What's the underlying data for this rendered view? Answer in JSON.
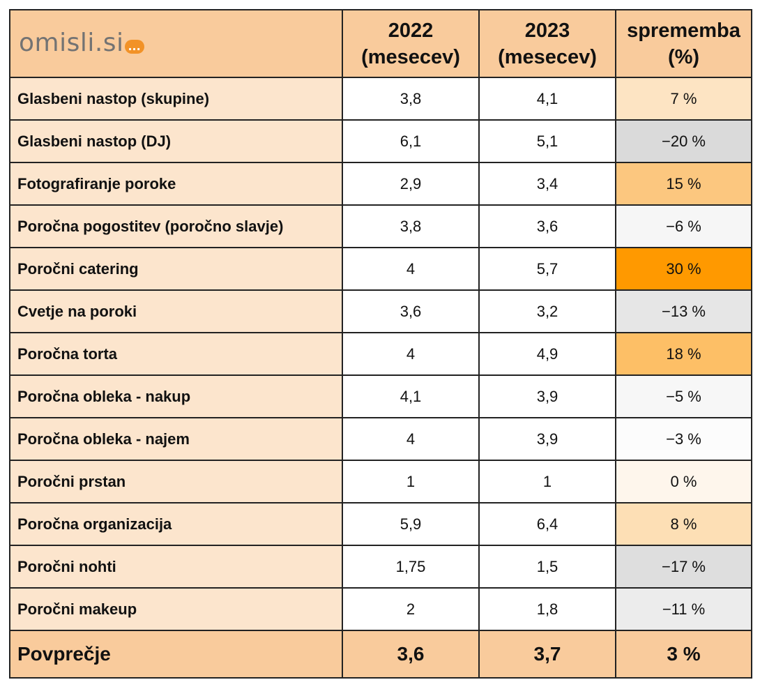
{
  "logo": {
    "text": "omisli.si",
    "bubble": "..."
  },
  "header": {
    "col2022": [
      "2022",
      "(mesecev)"
    ],
    "col2023": [
      "2023",
      "(mesecev)"
    ],
    "colChange": [
      "sprememba",
      "(%)"
    ]
  },
  "rows": [
    {
      "label": "Glasbeni nastop (skupine)",
      "v2022": "3,8",
      "v2023": "4,1",
      "change": "7 %",
      "change_color": "#fde4c3"
    },
    {
      "label": "Glasbeni nastop (DJ)",
      "v2022": "6,1",
      "v2023": "5,1",
      "change": "−20 %",
      "change_color": "#dadada"
    },
    {
      "label": "Fotografiranje poroke",
      "v2022": "2,9",
      "v2023": "3,4",
      "change": "15 %",
      "change_color": "#fcc77f"
    },
    {
      "label": "Poročna pogostitev (poročno slavje)",
      "v2022": "3,8",
      "v2023": "3,6",
      "change": "−6 %",
      "change_color": "#f6f6f6"
    },
    {
      "label": "Poročni catering",
      "v2022": "4",
      "v2023": "5,7",
      "change": "30 %",
      "change_color": "#ff9900"
    },
    {
      "label": "Cvetje na poroki",
      "v2022": "3,6",
      "v2023": "3,2",
      "change": "−13 %",
      "change_color": "#e6e6e6"
    },
    {
      "label": "Poročna torta",
      "v2022": "4",
      "v2023": "4,9",
      "change": "18 %",
      "change_color": "#fdbf66"
    },
    {
      "label": "Poročna obleka - nakup",
      "v2022": "4,1",
      "v2023": "3,9",
      "change": "−5 %",
      "change_color": "#f7f7f7"
    },
    {
      "label": "Poročna obleka - najem",
      "v2022": "4",
      "v2023": "3,9",
      "change": "−3 %",
      "change_color": "#fcfcfc"
    },
    {
      "label": "Poročni prstan",
      "v2022": "1",
      "v2023": "1",
      "change": "0 %",
      "change_color": "#fef6ec"
    },
    {
      "label": "Poročna organizacija",
      "v2022": "5,9",
      "v2023": "6,4",
      "change": "8 %",
      "change_color": "#fddfb5"
    },
    {
      "label": "Poročni nohti",
      "v2022": "1,75",
      "v2023": "1,5",
      "change": "−17 %",
      "change_color": "#dedede"
    },
    {
      "label": "Poročni makeup",
      "v2022": "2",
      "v2023": "1,8",
      "change": "−11 %",
      "change_color": "#ececec"
    }
  ],
  "average": {
    "label": "Povprečje",
    "v2022": "3,6",
    "v2023": "3,7",
    "change": "3 %"
  }
}
